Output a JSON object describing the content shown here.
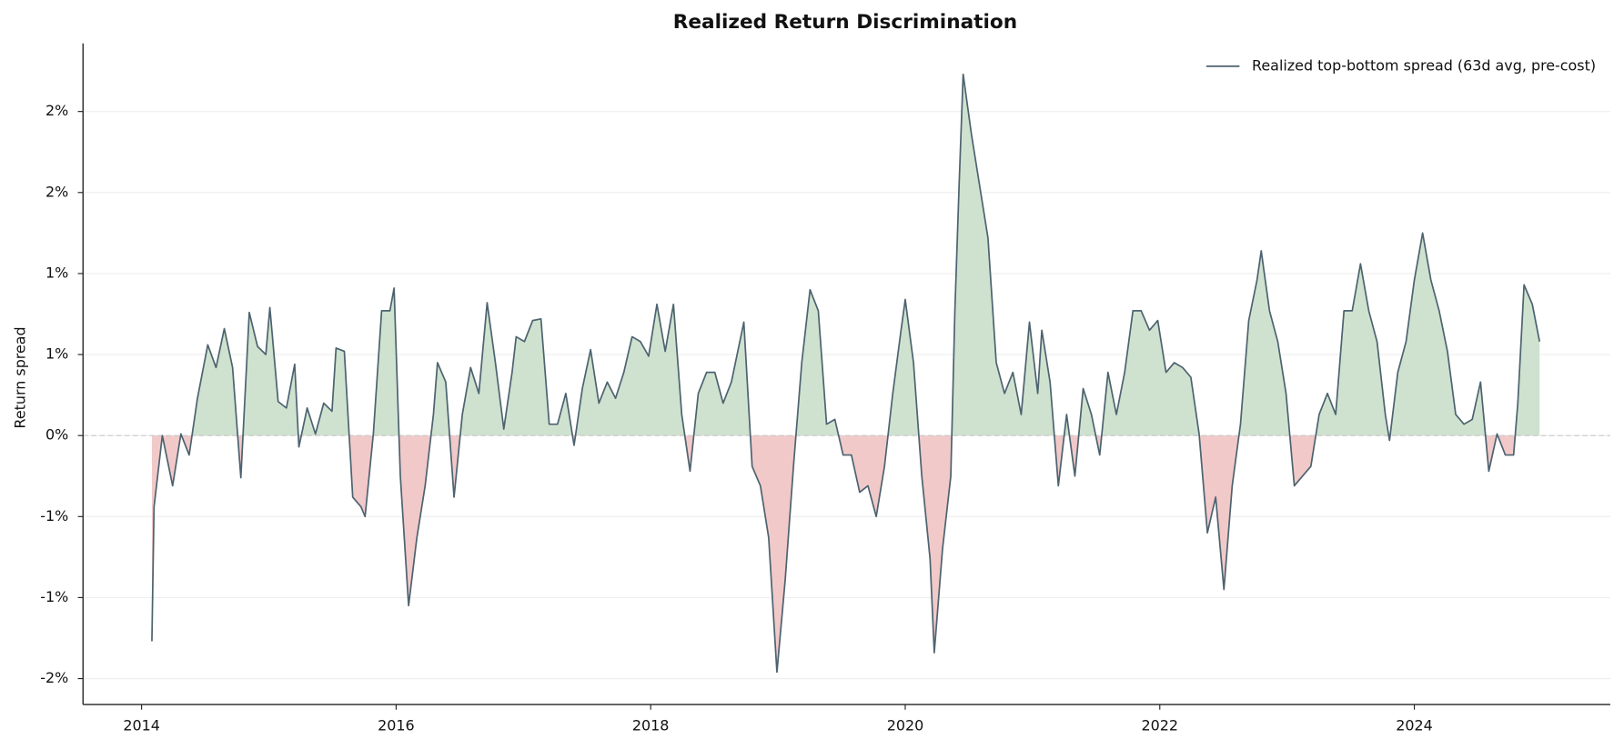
{
  "chart_data": {
    "type": "line",
    "title": "Realized Return Discrimination",
    "y_label": "Return spread",
    "xlim": [
      2013.54,
      2025.54
    ],
    "xticks": [
      2014,
      2016,
      2018,
      2020,
      2022,
      2024
    ],
    "ylim": [
      -1.66,
      2.42
    ],
    "yticks": [
      {
        "value": -1.5,
        "label": "-2%"
      },
      {
        "value": -1.0,
        "label": "-1%"
      },
      {
        "value": -0.5,
        "label": "-1%"
      },
      {
        "value": 0,
        "label": "0%"
      },
      {
        "value": 0.5,
        "label": "1%"
      },
      {
        "value": 1.0,
        "label": "1%"
      },
      {
        "value": 1.5,
        "label": "2%"
      },
      {
        "value": 2.0,
        "label": "2%"
      }
    ],
    "grid": true,
    "zero_line": true,
    "legend": "upper right",
    "positive_fill": "#cfe2cf",
    "negative_fill": "#f1c9c9",
    "x": [
      2014.081,
      2014.098,
      2014.163,
      2014.244,
      2014.309,
      2014.374,
      2014.439,
      2014.52,
      2014.585,
      2014.65,
      2014.715,
      2014.78,
      2014.846,
      2014.911,
      2014.976,
      2015.008,
      2015.073,
      2015.138,
      2015.203,
      2015.236,
      2015.301,
      2015.366,
      2015.431,
      2015.496,
      2015.528,
      2015.593,
      2015.659,
      2015.724,
      2015.756,
      2015.821,
      2015.886,
      2015.951,
      2015.984,
      2016.033,
      2016.098,
      2016.163,
      2016.228,
      2016.293,
      2016.325,
      2016.39,
      2016.455,
      2016.52,
      2016.585,
      2016.65,
      2016.715,
      2016.78,
      2016.846,
      2016.911,
      2016.943,
      2017.008,
      2017.073,
      2017.138,
      2017.203,
      2017.268,
      2017.333,
      2017.398,
      2017.463,
      2017.528,
      2017.593,
      2017.659,
      2017.724,
      2017.789,
      2017.854,
      2017.919,
      2017.984,
      2018.049,
      2018.114,
      2018.179,
      2018.244,
      2018.309,
      2018.374,
      2018.439,
      2018.504,
      2018.569,
      2018.634,
      2018.732,
      2018.797,
      2018.862,
      2018.927,
      2018.992,
      2019.057,
      2019.122,
      2019.187,
      2019.252,
      2019.317,
      2019.382,
      2019.447,
      2019.512,
      2019.577,
      2019.642,
      2019.707,
      2019.772,
      2019.837,
      2019.902,
      2019.967,
      2020.0,
      2020.065,
      2020.13,
      2020.195,
      2020.228,
      2020.293,
      2020.358,
      2020.39,
      2020.423,
      2020.455,
      2020.52,
      2020.585,
      2020.65,
      2020.715,
      2020.78,
      2020.846,
      2020.911,
      2020.976,
      2021.041,
      2021.073,
      2021.138,
      2021.203,
      2021.268,
      2021.333,
      2021.398,
      2021.463,
      2021.528,
      2021.593,
      2021.659,
      2021.724,
      2021.789,
      2021.854,
      2021.919,
      2021.984,
      2022.049,
      2022.114,
      2022.179,
      2022.244,
      2022.309,
      2022.374,
      2022.439,
      2022.504,
      2022.569,
      2022.634,
      2022.699,
      2022.764,
      2022.797,
      2022.862,
      2022.927,
      2022.992,
      2023.057,
      2023.122,
      2023.187,
      2023.252,
      2023.317,
      2023.382,
      2023.447,
      2023.512,
      2023.577,
      2023.642,
      2023.707,
      2023.772,
      2023.805,
      2023.87,
      2023.935,
      2024.0,
      2024.065,
      2024.13,
      2024.195,
      2024.26,
      2024.325,
      2024.39,
      2024.455,
      2024.52,
      2024.585,
      2024.65,
      2024.715,
      2024.78,
      2024.813,
      2024.862,
      2024.927,
      2024.984
    ],
    "series": [
      {
        "name": "Realized top-bottom spread (63d avg, pre-cost)",
        "color": "#4d6370",
        "values": [
          -1.27,
          -0.44,
          0.0,
          -0.31,
          0.01,
          -0.12,
          0.23,
          0.56,
          0.42,
          0.66,
          0.42,
          -0.26,
          0.76,
          0.55,
          0.5,
          0.79,
          0.21,
          0.17,
          0.44,
          -0.07,
          0.17,
          0.01,
          0.2,
          0.15,
          0.54,
          0.52,
          -0.38,
          -0.44,
          -0.5,
          0.01,
          0.77,
          0.77,
          0.91,
          -0.25,
          -1.05,
          -0.63,
          -0.31,
          0.13,
          0.45,
          0.33,
          -0.38,
          0.13,
          0.42,
          0.26,
          0.82,
          0.45,
          0.04,
          0.39,
          0.61,
          0.58,
          0.71,
          0.72,
          0.07,
          0.07,
          0.26,
          -0.06,
          0.29,
          0.53,
          0.2,
          0.33,
          0.23,
          0.39,
          0.61,
          0.58,
          0.49,
          0.81,
          0.52,
          0.81,
          0.13,
          -0.22,
          0.26,
          0.39,
          0.39,
          0.2,
          0.33,
          0.7,
          -0.19,
          -0.31,
          -0.63,
          -1.46,
          -0.89,
          -0.19,
          0.45,
          0.9,
          0.77,
          0.07,
          0.1,
          -0.12,
          -0.12,
          -0.35,
          -0.31,
          -0.5,
          -0.19,
          0.26,
          0.65,
          0.84,
          0.45,
          -0.25,
          -0.76,
          -1.34,
          -0.7,
          -0.25,
          0.77,
          1.54,
          2.23,
          1.86,
          1.54,
          1.22,
          0.45,
          0.26,
          0.39,
          0.13,
          0.7,
          0.26,
          0.65,
          0.33,
          -0.31,
          0.13,
          -0.25,
          0.29,
          0.13,
          -0.12,
          0.39,
          0.13,
          0.39,
          0.77,
          0.77,
          0.65,
          0.71,
          0.39,
          0.45,
          0.42,
          0.36,
          0.01,
          -0.6,
          -0.38,
          -0.95,
          -0.31,
          0.07,
          0.71,
          0.96,
          1.14,
          0.77,
          0.58,
          0.26,
          -0.31,
          -0.25,
          -0.19,
          0.13,
          0.26,
          0.13,
          0.77,
          0.77,
          1.06,
          0.77,
          0.58,
          0.13,
          -0.03,
          0.39,
          0.58,
          0.96,
          1.25,
          0.96,
          0.77,
          0.52,
          0.13,
          0.07,
          0.1,
          0.33,
          -0.22,
          0.01,
          -0.12,
          -0.12,
          0.2,
          0.93,
          0.81,
          0.58
        ]
      }
    ]
  }
}
